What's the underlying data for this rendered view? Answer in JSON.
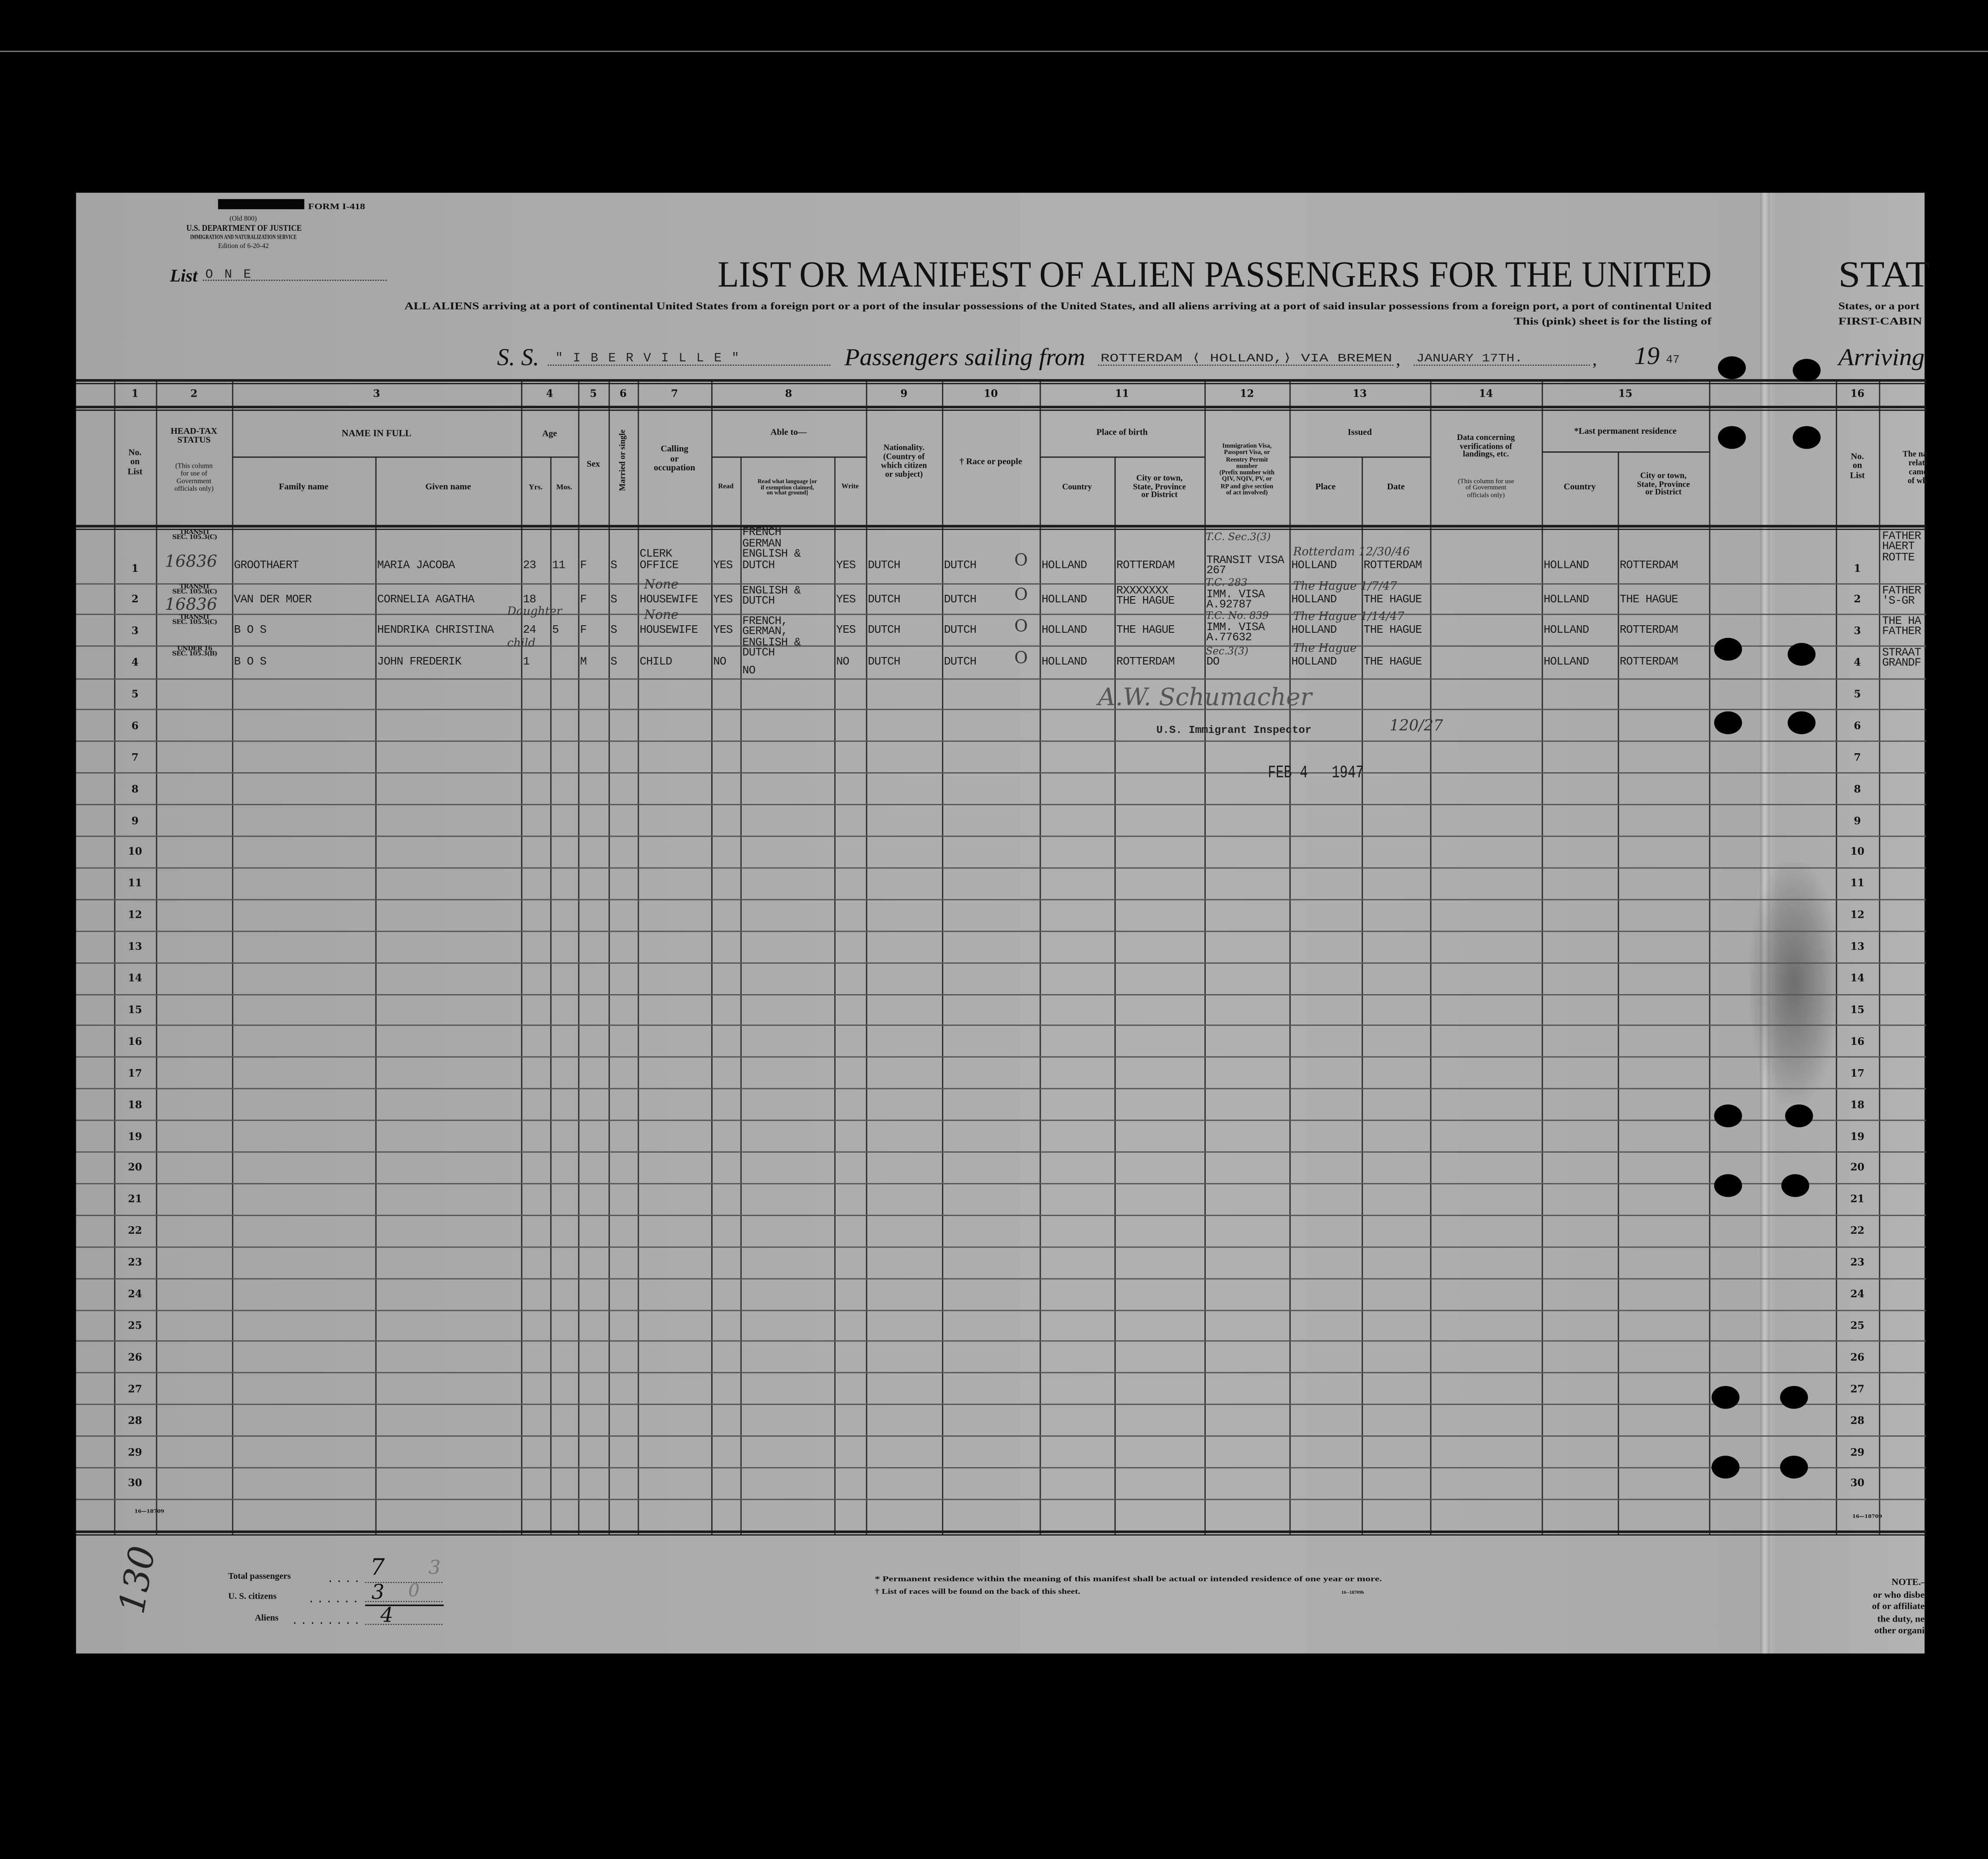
{
  "form": {
    "form_number": "FORM I-418",
    "old_number": "(Old 800)",
    "department": "U.S. DEPARTMENT OF JUSTICE",
    "service": "IMMIGRATION AND NATURALIZATION SERVICE",
    "edition": "Edition of 6-20-42"
  },
  "list": {
    "label": "List",
    "value": "ONE"
  },
  "title": "LIST OR MANIFEST OF ALIEN PASSENGERS FOR THE UNITED",
  "title_continued": "STAT",
  "subtitle_line1": "ALL ALIENS arriving at a port of continental United States from a foreign port or a port of the insular possessions of the United States, and all aliens arriving at a port of said insular possessions from a foreign port, a port of continental United",
  "subtitle_line2": "This (pink) sheet is for the listing of",
  "subtitle_continued_line1": "States, or a port",
  "subtitle_continued_line2": "FIRST-CABIN",
  "voyage": {
    "ss_label": "S. S.",
    "ship": "\"IBERVILLE\"",
    "sailing_label": "Passengers sailing from",
    "port": "ROTTERDAM ⟨ HOLLAND,⟩ VIA BREMEN",
    "date": "JANUARY 17TH.",
    "year_prefix": "19",
    "year_suffix": "47",
    "arriving_label": "Arriving"
  },
  "column_numbers": [
    "1",
    "2",
    "3",
    "4",
    "5",
    "6",
    "7",
    "8",
    "9",
    "10",
    "11",
    "12",
    "13",
    "14",
    "15",
    "16"
  ],
  "headers": {
    "no_on_list": "No.\non\nList",
    "head_tax": "HEAD-TAX\nSTATUS",
    "head_tax_note": "(This column\nfor use of\nGovernment\nofficials only)",
    "name_in_full": "NAME IN FULL",
    "family_name": "Family name",
    "given_name": "Given name",
    "age": "Age",
    "yrs": "Yrs.",
    "mos": "Mos.",
    "sex": "Sex",
    "married_or_single": "Married or single",
    "calling": "Calling\nor\noccupation",
    "able_to": "Able to—",
    "read": "Read",
    "read_language": "Read what language [or\nif exemption claimed,\non what ground]",
    "write": "Write",
    "nationality": "Nationality.\n(Country of\nwhich citizen\nor subject)",
    "race": "† Race or people",
    "place_of_birth": "Place of birth",
    "birth_country": "Country",
    "birth_city": "City or town,\nState, Province\nor District",
    "visa": "Immigration Visa,\nPassport Visa, or\nReentry Permit\nnumber\n(Prefix number with\nQIV, NQIV, PV, or\nRP and give section\nof act involved)",
    "issued": "Issued",
    "issued_place": "Place",
    "issued_date": "Date",
    "landing_data": "Data concerning\nverifications of\nlandings, etc.",
    "landing_data_note": "(This column for use\nof Government\nofficials only)",
    "last_residence": "*Last permanent residence",
    "residence_country": "Country",
    "residence_city": "City or town,\nState, Province\nor District",
    "no_on_list_16": "No.\non\nList",
    "relative_partial": "The na\nrelati\ncame\nof wh"
  },
  "row_numbers": [
    "1",
    "2",
    "3",
    "4",
    "5",
    "6",
    "7",
    "8",
    "9",
    "10",
    "11",
    "12",
    "13",
    "14",
    "15",
    "16",
    "17",
    "18",
    "19",
    "20",
    "21",
    "22",
    "23",
    "24",
    "25",
    "26",
    "27",
    "28",
    "29",
    "30"
  ],
  "passengers": [
    {
      "no": "1",
      "head_tax": "TRANSIT\nSEC. 105.3(C)",
      "head_tax_hand": "16836",
      "family": "GROOTHAERT",
      "given": "MARIA JACOBA",
      "yrs": "23",
      "mos": "11",
      "sex": "F",
      "marital": "S",
      "occupation": "CLERK\nOFFICE",
      "read": "YES",
      "languages": "FRENCH\nGERMAN\nENGLISH &\nDUTCH",
      "write": "YES",
      "nationality": "DUTCH",
      "race": "DUTCH",
      "race_hand": "O",
      "birth_country": "HOLLAND",
      "birth_city": "ROTTERDAM",
      "visa": "TRANSIT VISA\n267",
      "visa_hand": "T.C.   Sec.3(3)",
      "issued_place": "HOLLAND",
      "issued_date": "ROTTERDAM",
      "issued_hand": "Rotterdam 12/30/46",
      "res_country": "HOLLAND",
      "res_city": "ROTTERDAM",
      "relative": "FATHER\nHAERT\nROTTE"
    },
    {
      "no": "2",
      "head_tax": "TRANSIT\nSEC. 105.3(C)",
      "head_tax_hand": "16836",
      "family": "VAN DER MOER",
      "given": "CORNELIA AGATHA",
      "yrs": "18",
      "mos": "",
      "sex": "F",
      "marital": "S",
      "occupation": "HOUSEWIFE",
      "occupation_hand": "None",
      "read": "YES",
      "languages": "ENGLISH &\nDUTCH",
      "write": "YES",
      "nationality": "DUTCH",
      "race": "DUTCH",
      "race_hand": "O",
      "birth_country": "HOLLAND",
      "birth_city": "RXXXXXXX\nTHE HAGUE",
      "visa": "IMM. VISA\nA.92787",
      "visa_hand": "T.C. 283",
      "issued_place": "HOLLAND",
      "issued_date": "THE HAGUE",
      "issued_hand": "The Hague 1/7/47",
      "res_country": "HOLLAND",
      "res_city": "THE HAGUE",
      "relative": "FATHER\n'S-GR"
    },
    {
      "no": "3",
      "head_tax": "TRANSIT\nSEC. 105.3(C)",
      "head_tax_hand": "",
      "family": "B O S",
      "given": "HENDRIKA CHRISTINA",
      "yrs": "24",
      "mos": "5",
      "sex": "F",
      "marital": "S",
      "occupation": "HOUSEWIFE",
      "occupation_hand": "None",
      "read": "YES",
      "languages": "FRENCH,\nGERMAN,\nENGLISH &\nDUTCH",
      "write": "YES",
      "nationality": "DUTCH",
      "race": "DUTCH",
      "race_hand": "O",
      "birth_country": "HOLLAND",
      "birth_city": "THE HAGUE",
      "visa": "IMM. VISA\nA.77632",
      "visa_hand": "T.C. No. 839",
      "issued_place": "HOLLAND",
      "issued_date": "THE HAGUE",
      "issued_hand": "The Hague 1/14/47",
      "res_country": "HOLLAND",
      "res_city": "ROTTERDAM",
      "relative": "THE HA\nFATHER",
      "given_hand": "Daughter"
    },
    {
      "no": "4",
      "head_tax": "UNDER 16\nSEC. 105.3(B)",
      "head_tax_hand": "",
      "family": "B O S",
      "given": "JOHN FREDERIK",
      "yrs": "1",
      "mos": "",
      "sex": "M",
      "marital": "S",
      "occupation": "CHILD",
      "read": "NO",
      "languages": "NO",
      "write": "NO",
      "nationality": "DUTCH",
      "race": "DUTCH",
      "race_hand": "O",
      "birth_country": "HOLLAND",
      "birth_city": "ROTTERDAM",
      "visa": "DO",
      "visa_hand": "Sec.3(3)",
      "issued_place": "HOLLAND",
      "issued_date": "THE HAGUE",
      "issued_hand": "The Hague",
      "res_country": "HOLLAND",
      "res_city": "ROTTERDAM",
      "relative": "STRAAT\nGRANDF",
      "given_hand": "child"
    }
  ],
  "inspector": {
    "signature": "A.W. Schumacher",
    "title": "U.S. Immigrant Inspector",
    "hand_note": "120/27",
    "stamp_date": "FEB 4   1947"
  },
  "print_code": "16—18709",
  "print_code_b": "16--18709b",
  "totals": {
    "total_label": "Total passengers",
    "total_value": "7",
    "total_value_faint": "3",
    "citizens_label": "U. S. citizens",
    "citizens_value": "3",
    "citizens_value_faint": "0",
    "aliens_label": "Aliens",
    "aliens_value": "4",
    "sheet_number": "130"
  },
  "footnotes": {
    "residence": "* Permanent residence within the meaning of this manifest shall be actual or intended residence of one year or more.",
    "races": "† List of races will be found on the back of this sheet."
  },
  "note_partial": [
    "NOTE.—",
    "or who disbe",
    "of or affiliate",
    "the duty, ne",
    "other organi"
  ]
}
